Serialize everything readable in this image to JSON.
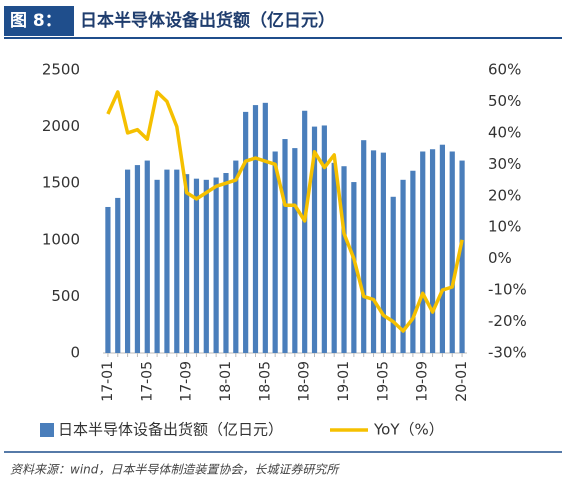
{
  "chart_data": {
    "type": "bar-line",
    "figure_label": "图 8：",
    "title": "日本半导体设备出货额（亿日元）",
    "source": "资料来源：wind，日本半导体制造装置协会，长城证券研究所",
    "categories": [
      "17-01",
      null,
      null,
      null,
      "17-05",
      null,
      null,
      null,
      "17-09",
      null,
      null,
      null,
      "18-01",
      null,
      null,
      null,
      "18-05",
      null,
      null,
      null,
      "18-09",
      null,
      null,
      null,
      "19-01",
      null,
      null,
      null,
      "19-05",
      null,
      null,
      null,
      "19-09",
      null,
      null,
      null,
      "20-01"
    ],
    "series": [
      {
        "name": "日本半导体设备出货额（亿日元）",
        "color": "#4a7ebb",
        "values": [
          1290,
          1370,
          1620,
          1660,
          1700,
          1530,
          1620,
          1620,
          1580,
          1540,
          1530,
          1550,
          1590,
          1700,
          2130,
          2190,
          2210,
          1780,
          1890,
          1810,
          2140,
          2000,
          2010,
          1680,
          1650,
          1510,
          1880,
          1790,
          1770,
          1380,
          1530,
          1610,
          1780,
          1800,
          1840,
          1780,
          1700
        ]
      },
      {
        "name": "YoY（%）",
        "color": "#f5c000",
        "axis": "y2",
        "values": [
          46,
          53,
          40,
          41,
          38,
          53,
          50,
          42,
          21,
          19,
          21,
          23,
          24,
          25,
          31,
          32,
          31,
          30,
          17,
          17,
          12,
          34,
          29,
          33,
          8,
          0,
          -12,
          -13,
          -18,
          -20,
          -23,
          -19,
          -11,
          -17,
          -10,
          -9,
          6
        ]
      }
    ],
    "ylim": [
      0,
      2500
    ],
    "yticks": [
      0,
      500,
      1000,
      1500,
      2000,
      2500
    ],
    "y2lim": [
      -30,
      60
    ],
    "y2ticks": [
      {
        "value": -30,
        "label": "-30%"
      },
      {
        "value": -20,
        "label": "-20%"
      },
      {
        "value": -10,
        "label": "-10%"
      },
      {
        "value": 0,
        "label": "0%"
      },
      {
        "value": 10,
        "label": "10%"
      },
      {
        "value": 20,
        "label": "20%"
      },
      {
        "value": 30,
        "label": "30%"
      },
      {
        "value": 40,
        "label": "40%"
      },
      {
        "value": 50,
        "label": "50%"
      },
      {
        "value": 60,
        "label": "60%"
      }
    ]
  }
}
